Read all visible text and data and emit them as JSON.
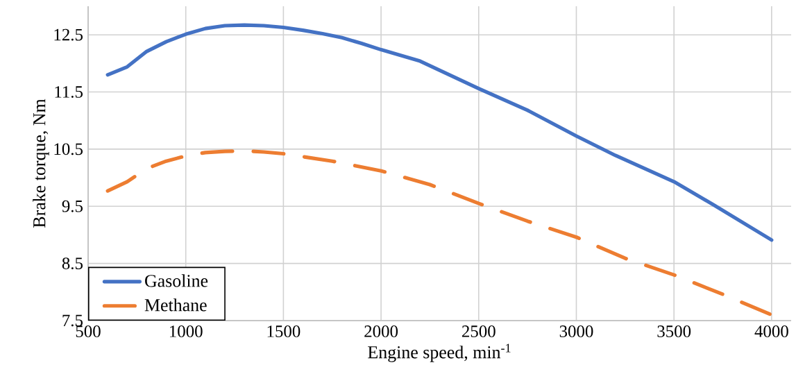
{
  "chart_data": {
    "type": "line",
    "xlabel": "Engine speed, min$^{-1}$",
    "ylabel": "Brake torque, Nm",
    "xlim": [
      500,
      4100
    ],
    "ylim": [
      7.5,
      13
    ],
    "xticks": [
      500,
      1000,
      1500,
      2000,
      2500,
      3000,
      3500,
      4000
    ],
    "yticks": [
      7.5,
      8.5,
      9.5,
      10.5,
      11.5,
      12.5
    ],
    "grid": true,
    "legend": "bottom left",
    "series": [
      {
        "name": "Gasoline",
        "color": "#4472c4",
        "line_style": "solid",
        "x": [
          600,
          700,
          800,
          900,
          1000,
          1100,
          1200,
          1300,
          1400,
          1500,
          1600,
          1700,
          1800,
          1900,
          2000,
          2200,
          2500,
          2750,
          3000,
          3200,
          3500,
          3700,
          4000
        ],
        "values": [
          11.8,
          11.94,
          12.21,
          12.38,
          12.51,
          12.61,
          12.66,
          12.67,
          12.66,
          12.63,
          12.58,
          12.52,
          12.45,
          12.35,
          12.24,
          12.04,
          11.56,
          11.18,
          10.73,
          10.39,
          9.93,
          9.53,
          8.91
        ]
      },
      {
        "name": "Methane",
        "color": "#ed7d31",
        "line_style": "dashed",
        "x": [
          600,
          700,
          800,
          900,
          1000,
          1100,
          1200,
          1300,
          1400,
          1500,
          1750,
          2000,
          2250,
          2500,
          2750,
          3000,
          3250,
          3500,
          3750,
          4000
        ],
        "values": [
          9.77,
          9.93,
          10.16,
          10.29,
          10.38,
          10.44,
          10.46,
          10.47,
          10.45,
          10.42,
          10.29,
          10.12,
          9.88,
          9.55,
          9.24,
          8.96,
          8.59,
          8.3,
          7.96,
          7.6
        ]
      }
    ]
  }
}
